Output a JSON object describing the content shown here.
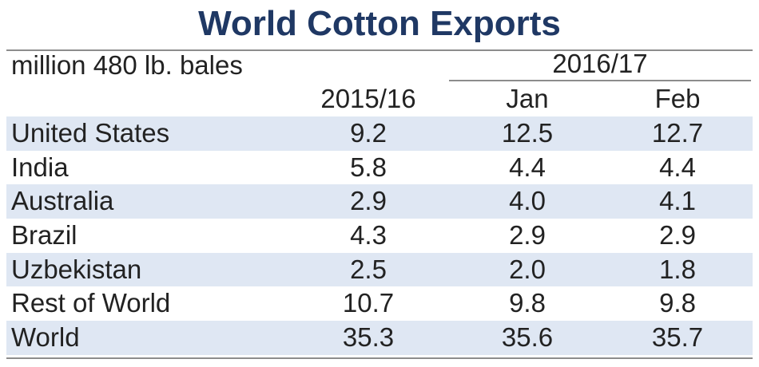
{
  "title": "World Cotton Exports",
  "unit_label": "million 480 lb. bales",
  "column_group": "2016/17",
  "columns": [
    "2015/16",
    "Jan",
    "Feb"
  ],
  "colors": {
    "title": "#1f3864",
    "row_shade": "#dfe7f3",
    "rule": "#8c8c8c"
  },
  "chart_data": {
    "type": "table",
    "title": "World Cotton Exports",
    "unit": "million 480 lb. bales",
    "column_group": "2016/17",
    "columns": [
      "2015/16",
      "Jan",
      "Feb"
    ],
    "rows": [
      {
        "name": "United States",
        "values": [
          "9.2",
          "12.5",
          "12.7"
        ]
      },
      {
        "name": "India",
        "values": [
          "5.8",
          "4.4",
          "4.4"
        ]
      },
      {
        "name": "Australia",
        "values": [
          "2.9",
          "4.0",
          "4.1"
        ]
      },
      {
        "name": "Brazil",
        "values": [
          "4.3",
          "2.9",
          "2.9"
        ]
      },
      {
        "name": "Uzbekistan",
        "values": [
          "2.5",
          "2.0",
          "1.8"
        ]
      },
      {
        "name": "Rest of World",
        "values": [
          "10.7",
          "9.8",
          "9.8"
        ]
      },
      {
        "name": "World",
        "values": [
          "35.3",
          "35.6",
          "35.7"
        ]
      }
    ]
  }
}
